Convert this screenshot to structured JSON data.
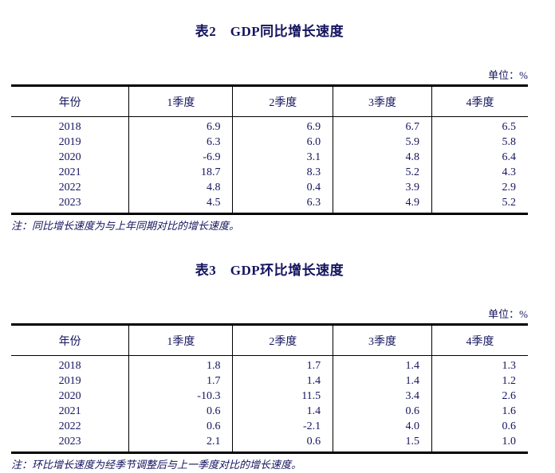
{
  "page": {
    "background": "#ffffff",
    "text_color": "#14145f",
    "border_color": "#000000"
  },
  "table2": {
    "title": "表2　GDP同比增长速度",
    "unit_label": "单位：%",
    "columns": [
      "年份",
      "1季度",
      "2季度",
      "3季度",
      "4季度"
    ],
    "rows": [
      [
        "2018",
        "6.9",
        "6.9",
        "6.7",
        "6.5"
      ],
      [
        "2019",
        "6.3",
        "6.0",
        "5.9",
        "5.8"
      ],
      [
        "2020",
        "-6.9",
        "3.1",
        "4.8",
        "6.4"
      ],
      [
        "2021",
        "18.7",
        "8.3",
        "5.2",
        "4.3"
      ],
      [
        "2022",
        "4.8",
        "0.4",
        "3.9",
        "2.9"
      ],
      [
        "2023",
        "4.5",
        "6.3",
        "4.9",
        "5.2"
      ]
    ],
    "note": "注：同比增长速度为与上年同期对比的增长速度。"
  },
  "table3": {
    "title": "表3　GDP环比增长速度",
    "unit_label": "单位：%",
    "columns": [
      "年份",
      "1季度",
      "2季度",
      "3季度",
      "4季度"
    ],
    "rows": [
      [
        "2018",
        "1.8",
        "1.7",
        "1.4",
        "1.3"
      ],
      [
        "2019",
        "1.7",
        "1.4",
        "1.4",
        "1.2"
      ],
      [
        "2020",
        "-10.3",
        "11.5",
        "3.4",
        "2.6"
      ],
      [
        "2021",
        "0.6",
        "1.4",
        "0.6",
        "1.6"
      ],
      [
        "2022",
        "0.6",
        "-2.1",
        "4.0",
        "0.6"
      ],
      [
        "2023",
        "2.1",
        "0.6",
        "1.5",
        "1.0"
      ]
    ],
    "note": "注：环比增长速度为经季节调整后与上一季度对比的增长速度。"
  }
}
